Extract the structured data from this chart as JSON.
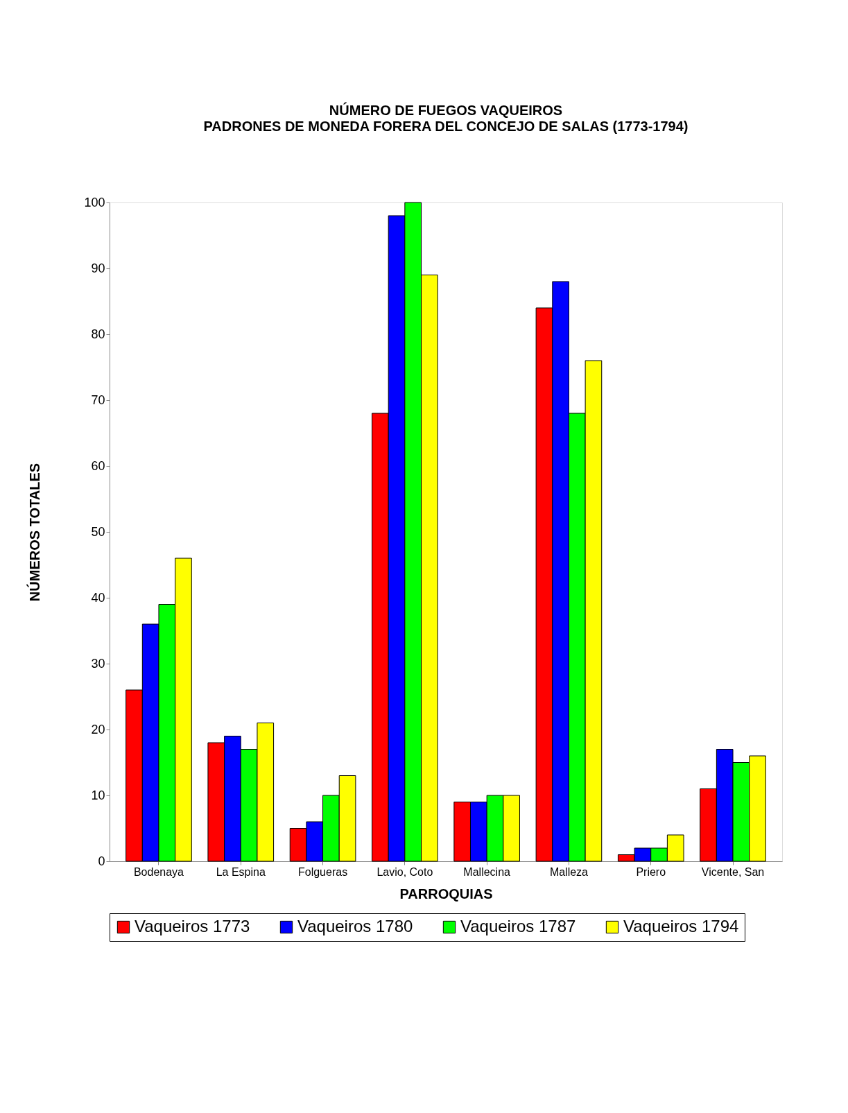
{
  "chart_data": {
    "type": "bar",
    "title": "NÚMERO DE FUEGOS VAQUEIROS",
    "subtitle": "PADRONES DE MONEDA FORERA DEL CONCEJO DE SALAS (1773-1794)",
    "xlabel": "PARROQUIAS",
    "ylabel": "NÚMEROS TOTALES",
    "categories": [
      "Bodenaya",
      "La Espina",
      "Folgueras",
      "Lavio, Coto",
      "Mallecina",
      "Malleza",
      "Priero",
      "Vicente, San"
    ],
    "series": [
      {
        "name": "Vaqueiros 1773",
        "color": "#ff0000",
        "values": [
          26,
          18,
          5,
          68,
          9,
          84,
          1,
          11
        ]
      },
      {
        "name": "Vaqueiros 1780",
        "color": "#0000ff",
        "values": [
          36,
          19,
          6,
          98,
          9,
          88,
          2,
          17
        ]
      },
      {
        "name": "Vaqueiros 1787",
        "color": "#00ff00",
        "values": [
          39,
          17,
          10,
          100,
          10,
          68,
          2,
          15
        ]
      },
      {
        "name": "Vaqueiros 1794",
        "color": "#ffff00",
        "values": [
          46,
          21,
          13,
          89,
          10,
          76,
          4,
          16
        ]
      }
    ],
    "ylim": [
      0,
      100
    ],
    "yticks": [
      0,
      10,
      20,
      30,
      40,
      50,
      60,
      70,
      80,
      90,
      100
    ],
    "grid": false,
    "legend": "bottom"
  }
}
